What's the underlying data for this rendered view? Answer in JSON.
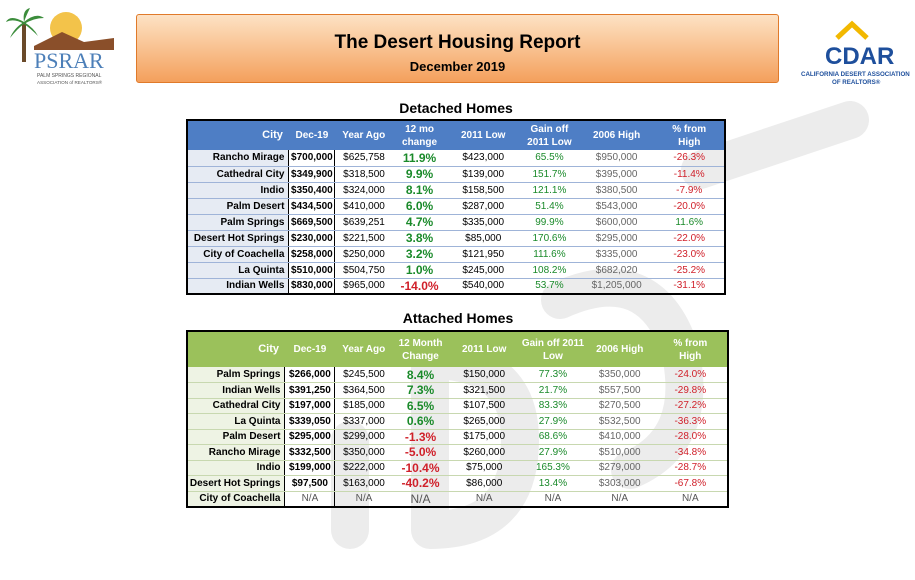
{
  "header": {
    "title": "The Desert Housing Report",
    "subtitle": "December 2019"
  },
  "logos": {
    "left": {
      "main": "PSRAR",
      "line1": "PALM SPRINGS REGIONAL",
      "line2": "ASSOCIATION of REALTORS®"
    },
    "right": {
      "main": "CDAR",
      "line1": "CALIFORNIA DESERT ASSOCIATION",
      "line2": "OF REALTORS®"
    }
  },
  "detached": {
    "title": "Detached Homes",
    "headers": {
      "city": "City",
      "cur": "Dec-19",
      "ago": "Year Ago",
      "chg1": "12 mo",
      "chg2": "change",
      "low": "2011 Low",
      "gain1": "Gain off",
      "gain2": "2011 Low",
      "hi": "2006 High",
      "pct1": "% from",
      "pct2": "High"
    },
    "rows": [
      {
        "city": "Rancho Mirage",
        "cur": "$700,000",
        "ago": "$625,758",
        "chg": "11.9%",
        "low": "$423,000",
        "gain": "65.5%",
        "hi": "$950,000",
        "pct": "-26.3%"
      },
      {
        "city": "Cathedral City",
        "cur": "$349,900",
        "ago": "$318,500",
        "chg": "9.9%",
        "low": "$139,000",
        "gain": "151.7%",
        "hi": "$395,000",
        "pct": "-11.4%"
      },
      {
        "city": "Indio",
        "cur": "$350,400",
        "ago": "$324,000",
        "chg": "8.1%",
        "low": "$158,500",
        "gain": "121.1%",
        "hi": "$380,500",
        "pct": "-7.9%"
      },
      {
        "city": "Palm Desert",
        "cur": "$434,500",
        "ago": "$410,000",
        "chg": "6.0%",
        "low": "$287,000",
        "gain": "51.4%",
        "hi": "$543,000",
        "pct": "-20.0%"
      },
      {
        "city": "Palm Springs",
        "cur": "$669,500",
        "ago": "$639,251",
        "chg": "4.7%",
        "low": "$335,000",
        "gain": "99.9%",
        "hi": "$600,000",
        "pct": "11.6%"
      },
      {
        "city": "Desert Hot Springs",
        "cur": "$230,000",
        "ago": "$221,500",
        "chg": "3.8%",
        "low": "$85,000",
        "gain": "170.6%",
        "hi": "$295,000",
        "pct": "-22.0%"
      },
      {
        "city": "City of Coachella",
        "cur": "$258,000",
        "ago": "$250,000",
        "chg": "3.2%",
        "low": "$121,950",
        "gain": "111.6%",
        "hi": "$335,000",
        "pct": "-23.0%"
      },
      {
        "city": "La Quinta",
        "cur": "$510,000",
        "ago": "$504,750",
        "chg": "1.0%",
        "low": "$245,000",
        "gain": "108.2%",
        "hi": "$682,020",
        "pct": "-25.2%"
      },
      {
        "city": "Indian Wells",
        "cur": "$830,000",
        "ago": "$965,000",
        "chg": "-14.0%",
        "low": "$540,000",
        "gain": "53.7%",
        "hi": "$1,205,000",
        "pct": "-31.1%"
      }
    ]
  },
  "attached": {
    "title": "Attached Homes",
    "headers": {
      "city": "City",
      "cur": "Dec-19",
      "ago": "Year Ago",
      "chg1": "12 Month",
      "chg2": "Change",
      "low": "2011 Low",
      "gain1": "Gain off 2011",
      "gain2": "Low",
      "hi": "2006 High",
      "pct1": "% from",
      "pct2": "High"
    },
    "rows": [
      {
        "city": "Palm Springs",
        "cur": "$266,000",
        "ago": "$245,500",
        "chg": "8.4%",
        "low": "$150,000",
        "gain": "77.3%",
        "hi": "$350,000",
        "pct": "-24.0%"
      },
      {
        "city": "Indian Wells",
        "cur": "$391,250",
        "ago": "$364,500",
        "chg": "7.3%",
        "low": "$321,500",
        "gain": "21.7%",
        "hi": "$557,500",
        "pct": "-29.8%"
      },
      {
        "city": "Cathedral City",
        "cur": "$197,000",
        "ago": "$185,000",
        "chg": "6.5%",
        "low": "$107,500",
        "gain": "83.3%",
        "hi": "$270,500",
        "pct": "-27.2%"
      },
      {
        "city": "La Quinta",
        "cur": "$339,050",
        "ago": "$337,000",
        "chg": "0.6%",
        "low": "$265,000",
        "gain": "27.9%",
        "hi": "$532,500",
        "pct": "-36.3%"
      },
      {
        "city": "Palm Desert",
        "cur": "$295,000",
        "ago": "$299,000",
        "chg": "-1.3%",
        "low": "$175,000",
        "gain": "68.6%",
        "hi": "$410,000",
        "pct": "-28.0%"
      },
      {
        "city": "Rancho Mirage",
        "cur": "$332,500",
        "ago": "$350,000",
        "chg": "-5.0%",
        "low": "$260,000",
        "gain": "27.9%",
        "hi": "$510,000",
        "pct": "-34.8%"
      },
      {
        "city": "Indio",
        "cur": "$199,000",
        "ago": "$222,000",
        "chg": "-10.4%",
        "low": "$75,000",
        "gain": "165.3%",
        "hi": "$279,000",
        "pct": "-28.7%"
      },
      {
        "city": "Desert Hot Springs",
        "cur": "$97,500",
        "ago": "$163,000",
        "chg": "-40.2%",
        "low": "$86,000",
        "gain": "13.4%",
        "hi": "$303,000",
        "pct": "-67.8%"
      },
      {
        "city": "City of Coachella",
        "cur": "N/A",
        "ago": "N/A",
        "chg": "N/A",
        "low": "N/A",
        "gain": "N/A",
        "hi": "N/A",
        "pct": "N/A"
      }
    ]
  },
  "colors": {
    "detached_header": "#4e7ec5",
    "attached_header": "#9bc15b",
    "positive": "#1a8a2a",
    "negative": "#d0202a",
    "banner": "#f4a05c"
  }
}
